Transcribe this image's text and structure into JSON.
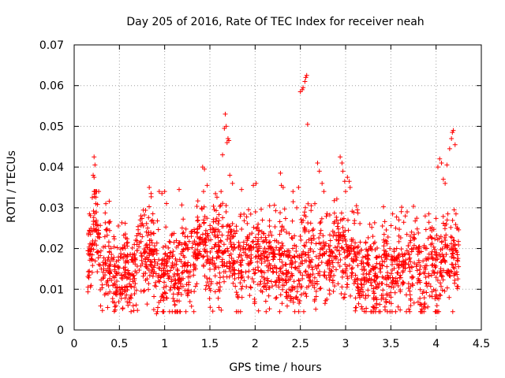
{
  "chart_data": {
    "type": "scatter",
    "title": "Day 205 of 2016, Rate Of TEC Index for receiver neah",
    "xlabel": "GPS time / hours",
    "ylabel": "ROTI / TECUs",
    "xlim": [
      0,
      4.5
    ],
    "ylim": [
      0,
      0.07
    ],
    "grid": true,
    "marker": "+",
    "marker_color": "#ff0000",
    "x_ticks": [
      {
        "value": 0,
        "label": "0"
      },
      {
        "value": 0.5,
        "label": "0.5"
      },
      {
        "value": 1,
        "label": "1"
      },
      {
        "value": 1.5,
        "label": "1.5"
      },
      {
        "value": 2,
        "label": "2"
      },
      {
        "value": 2.5,
        "label": "2.5"
      },
      {
        "value": 3,
        "label": "3"
      },
      {
        "value": 3.5,
        "label": "3.5"
      },
      {
        "value": 4,
        "label": "4"
      },
      {
        "value": 4.5,
        "label": "4.5"
      }
    ],
    "y_ticks": [
      {
        "value": 0,
        "label": "0"
      },
      {
        "value": 0.01,
        "label": "0.01"
      },
      {
        "value": 0.02,
        "label": "0.02"
      },
      {
        "value": 0.03,
        "label": "0.03"
      },
      {
        "value": 0.04,
        "label": "0.04"
      },
      {
        "value": 0.05,
        "label": "0.05"
      },
      {
        "value": 0.06,
        "label": "0.06"
      },
      {
        "value": 0.07,
        "label": "0.07"
      }
    ],
    "x_range_data": [
      0.15,
      4.25
    ],
    "envelope": [
      [
        0.15,
        0.022
      ],
      [
        0.2,
        0.022
      ],
      [
        0.23,
        0.032
      ],
      [
        0.3,
        0.02
      ],
      [
        0.4,
        0.018
      ],
      [
        0.5,
        0.016
      ],
      [
        0.6,
        0.017
      ],
      [
        0.7,
        0.02
      ],
      [
        0.8,
        0.026
      ],
      [
        0.9,
        0.018
      ],
      [
        1.0,
        0.017
      ],
      [
        1.1,
        0.016
      ],
      [
        1.2,
        0.018
      ],
      [
        1.3,
        0.019
      ],
      [
        1.42,
        0.026
      ],
      [
        1.5,
        0.02
      ],
      [
        1.6,
        0.025
      ],
      [
        1.7,
        0.023
      ],
      [
        1.8,
        0.019
      ],
      [
        1.9,
        0.021
      ],
      [
        2.0,
        0.022
      ],
      [
        2.1,
        0.019
      ],
      [
        2.2,
        0.02
      ],
      [
        2.3,
        0.02
      ],
      [
        2.4,
        0.016
      ],
      [
        2.5,
        0.02
      ],
      [
        2.55,
        0.022
      ],
      [
        2.6,
        0.019
      ],
      [
        2.7,
        0.02
      ],
      [
        2.8,
        0.021
      ],
      [
        2.95,
        0.024
      ],
      [
        3.0,
        0.023
      ],
      [
        3.1,
        0.018
      ],
      [
        3.2,
        0.017
      ],
      [
        3.3,
        0.016
      ],
      [
        3.4,
        0.016
      ],
      [
        3.5,
        0.017
      ],
      [
        3.6,
        0.018
      ],
      [
        3.7,
        0.02
      ],
      [
        3.8,
        0.017
      ],
      [
        3.9,
        0.017
      ],
      [
        4.0,
        0.018
      ],
      [
        4.1,
        0.02
      ],
      [
        4.2,
        0.022
      ],
      [
        4.25,
        0.02
      ]
    ],
    "highlights": [
      {
        "x": 0.22,
        "y": 0.0425
      },
      {
        "x": 0.23,
        "y": 0.0405
      },
      {
        "x": 0.21,
        "y": 0.038
      },
      {
        "x": 0.22,
        "y": 0.0375
      },
      {
        "x": 0.2,
        "y": 0.0325
      },
      {
        "x": 0.24,
        "y": 0.031
      },
      {
        "x": 0.35,
        "y": 0.031
      },
      {
        "x": 0.83,
        "y": 0.035
      },
      {
        "x": 0.85,
        "y": 0.0335
      },
      {
        "x": 0.94,
        "y": 0.034
      },
      {
        "x": 0.97,
        "y": 0.0335
      },
      {
        "x": 1.0,
        "y": 0.034
      },
      {
        "x": 1.16,
        "y": 0.0345
      },
      {
        "x": 1.42,
        "y": 0.04
      },
      {
        "x": 1.44,
        "y": 0.0395
      },
      {
        "x": 1.47,
        "y": 0.0355
      },
      {
        "x": 1.43,
        "y": 0.034
      },
      {
        "x": 1.67,
        "y": 0.053
      },
      {
        "x": 1.66,
        "y": 0.0495
      },
      {
        "x": 1.68,
        "y": 0.05
      },
      {
        "x": 1.7,
        "y": 0.047
      },
      {
        "x": 1.71,
        "y": 0.0465
      },
      {
        "x": 1.69,
        "y": 0.046
      },
      {
        "x": 1.64,
        "y": 0.043
      },
      {
        "x": 1.72,
        "y": 0.038
      },
      {
        "x": 1.75,
        "y": 0.036
      },
      {
        "x": 1.85,
        "y": 0.0345
      },
      {
        "x": 1.98,
        "y": 0.0355
      },
      {
        "x": 2.01,
        "y": 0.036
      },
      {
        "x": 2.28,
        "y": 0.0385
      },
      {
        "x": 2.29,
        "y": 0.0355
      },
      {
        "x": 2.31,
        "y": 0.035
      },
      {
        "x": 2.16,
        "y": 0.0305
      },
      {
        "x": 2.42,
        "y": 0.0315
      },
      {
        "x": 2.5,
        "y": 0.0585
      },
      {
        "x": 2.52,
        "y": 0.059
      },
      {
        "x": 2.53,
        "y": 0.0595
      },
      {
        "x": 2.55,
        "y": 0.061
      },
      {
        "x": 2.56,
        "y": 0.062
      },
      {
        "x": 2.57,
        "y": 0.0625
      },
      {
        "x": 2.58,
        "y": 0.0505
      },
      {
        "x": 2.48,
        "y": 0.035
      },
      {
        "x": 2.46,
        "y": 0.03
      },
      {
        "x": 2.62,
        "y": 0.0305
      },
      {
        "x": 2.66,
        "y": 0.031
      },
      {
        "x": 2.69,
        "y": 0.041
      },
      {
        "x": 2.71,
        "y": 0.039
      },
      {
        "x": 2.74,
        "y": 0.036
      },
      {
        "x": 2.76,
        "y": 0.034
      },
      {
        "x": 2.94,
        "y": 0.0425
      },
      {
        "x": 2.96,
        "y": 0.041
      },
      {
        "x": 2.97,
        "y": 0.039
      },
      {
        "x": 2.99,
        "y": 0.0365
      },
      {
        "x": 3.02,
        "y": 0.0375
      },
      {
        "x": 3.04,
        "y": 0.0365
      },
      {
        "x": 3.05,
        "y": 0.035
      },
      {
        "x": 3.0,
        "y": 0.034
      },
      {
        "x": 3.12,
        "y": 0.0305
      },
      {
        "x": 3.13,
        "y": 0.0295
      },
      {
        "x": 3.52,
        "y": 0.0285
      },
      {
        "x": 3.66,
        "y": 0.028
      },
      {
        "x": 3.68,
        "y": 0.029
      },
      {
        "x": 3.88,
        "y": 0.028
      },
      {
        "x": 3.92,
        "y": 0.0285
      },
      {
        "x": 4.02,
        "y": 0.04
      },
      {
        "x": 4.04,
        "y": 0.042
      },
      {
        "x": 4.06,
        "y": 0.041
      },
      {
        "x": 4.08,
        "y": 0.037
      },
      {
        "x": 4.1,
        "y": 0.036
      },
      {
        "x": 4.12,
        "y": 0.0405
      },
      {
        "x": 4.15,
        "y": 0.0445
      },
      {
        "x": 4.17,
        "y": 0.047
      },
      {
        "x": 4.18,
        "y": 0.0485
      },
      {
        "x": 4.19,
        "y": 0.049
      },
      {
        "x": 4.21,
        "y": 0.0455
      },
      {
        "x": 4.2,
        "y": 0.0295
      },
      {
        "x": 4.22,
        "y": 0.0285
      },
      {
        "x": 4.13,
        "y": 0.0285
      },
      {
        "x": 0.37,
        "y": 0.0055
      },
      {
        "x": 0.88,
        "y": 0.005
      },
      {
        "x": 0.91,
        "y": 0.004
      },
      {
        "x": 0.92,
        "y": 0.0045
      },
      {
        "x": 1.6,
        "y": 0.0055
      },
      {
        "x": 2.47,
        "y": 0.0075
      },
      {
        "x": 3.99,
        "y": 0.0045
      },
      {
        "x": 4.01,
        "y": 0.006
      },
      {
        "x": 3.31,
        "y": 0.0055
      },
      {
        "x": 3.72,
        "y": 0.006
      }
    ],
    "n_points": 2200,
    "seed": 205
  }
}
